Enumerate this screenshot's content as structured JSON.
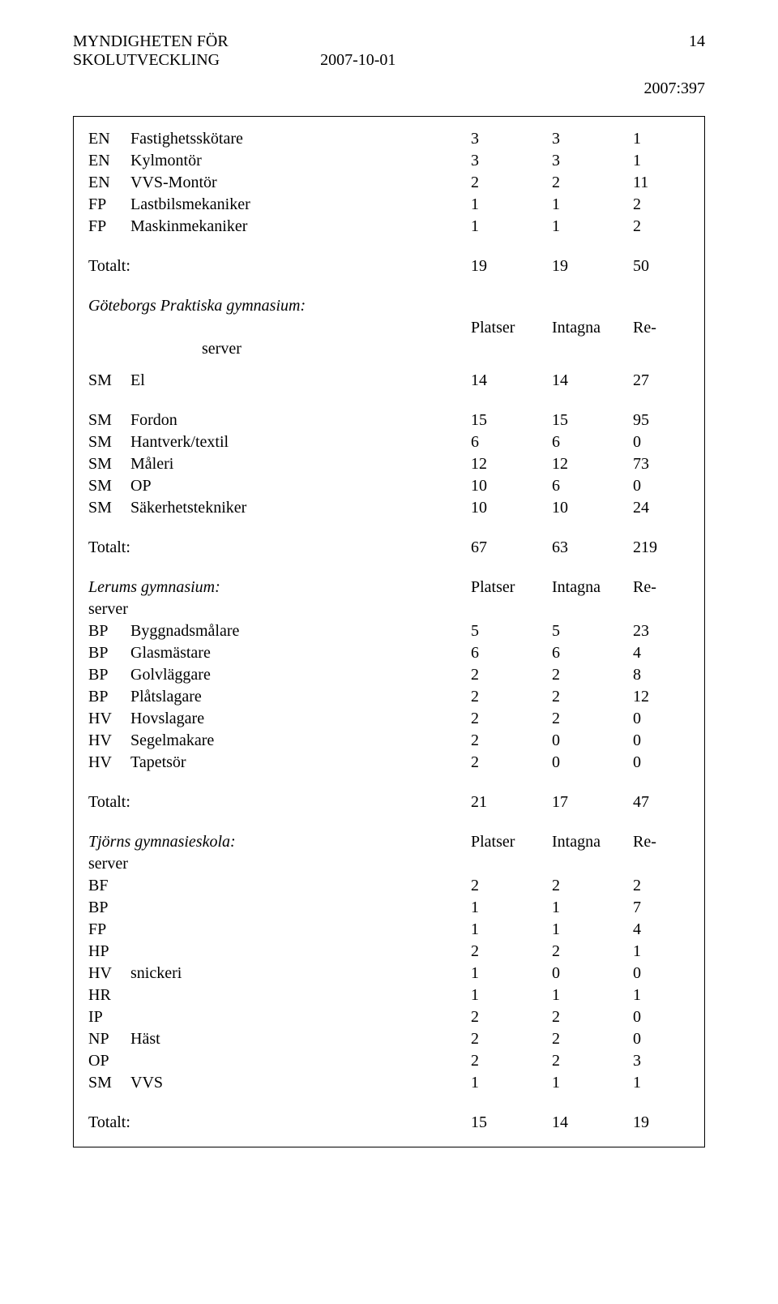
{
  "header": {
    "org_line1": "MYNDIGHETEN FÖR",
    "org_line2": "SKOLUTVECKLING",
    "date": "2007-10-01",
    "page_no": "14",
    "ref": "2007:397"
  },
  "col_headers": {
    "c1": "Platser",
    "c2": "Intagna",
    "c3a": "Re-",
    "c3b": "server"
  },
  "block1": {
    "rows": [
      {
        "code": "EN",
        "label": "Fastighetsskötare",
        "v1": "3",
        "v2": "3",
        "v3": "1"
      },
      {
        "code": "EN",
        "label": "Kylmontör",
        "v1": "3",
        "v2": "3",
        "v3": "1"
      },
      {
        "code": "EN",
        "label": "VVS-Montör",
        "v1": "2",
        "v2": "2",
        "v3": "11"
      },
      {
        "code": "FP",
        "label": "Lastbilsmekaniker",
        "v1": "1",
        "v2": "1",
        "v3": "2"
      },
      {
        "code": "FP",
        "label": "Maskinmekaniker",
        "v1": "1",
        "v2": "1",
        "v3": "2"
      }
    ],
    "total": {
      "label": "Totalt:",
      "v1": "19",
      "v2": "19",
      "v3": "50"
    }
  },
  "block2": {
    "title": "Göteborgs Praktiska gymnasium:",
    "lead": {
      "code": "SM",
      "label": "El",
      "v1": "14",
      "v2": "14",
      "v3": "27"
    },
    "rows": [
      {
        "code": "SM",
        "label": "Fordon",
        "v1": "15",
        "v2": "15",
        "v3": "95"
      },
      {
        "code": "SM",
        "label": "Hantverk/textil",
        "v1": "6",
        "v2": "6",
        "v3": "0"
      },
      {
        "code": "SM",
        "label": "Måleri",
        "v1": "12",
        "v2": "12",
        "v3": "73"
      },
      {
        "code": "SM",
        "label": "OP",
        "v1": "10",
        "v2": "6",
        "v3": "0"
      },
      {
        "code": "SM",
        "label": "Säkerhetstekniker",
        "v1": "10",
        "v2": "10",
        "v3": "24"
      }
    ],
    "total": {
      "label": "Totalt:",
      "v1": "67",
      "v2": "63",
      "v3": "219"
    }
  },
  "block3": {
    "title": "Lerums gymnasium:",
    "rows": [
      {
        "code": "BP",
        "label": "Byggnadsmålare",
        "v1": "5",
        "v2": "5",
        "v3": "23"
      },
      {
        "code": "BP",
        "label": "Glasmästare",
        "v1": "6",
        "v2": "6",
        "v3": "4"
      },
      {
        "code": "BP",
        "label": "Golvläggare",
        "v1": "2",
        "v2": "2",
        "v3": "8"
      },
      {
        "code": "BP",
        "label": "Plåtslagare",
        "v1": "2",
        "v2": "2",
        "v3": "12"
      },
      {
        "code": "HV",
        "label": "Hovslagare",
        "v1": "2",
        "v2": "2",
        "v3": "0"
      },
      {
        "code": "HV",
        "label": "Segelmakare",
        "v1": "2",
        "v2": "0",
        "v3": "0"
      },
      {
        "code": "HV",
        "label": "Tapetsör",
        "v1": "2",
        "v2": "0",
        "v3": "0"
      }
    ],
    "total": {
      "label": "Totalt:",
      "v1": "21",
      "v2": "17",
      "v3": "47"
    }
  },
  "block4": {
    "title": "Tjörns gymnasieskola:",
    "rows": [
      {
        "code": "BF",
        "label": "",
        "v1": "2",
        "v2": "2",
        "v3": "2"
      },
      {
        "code": "BP",
        "label": "",
        "v1": "1",
        "v2": "1",
        "v3": "7"
      },
      {
        "code": "FP",
        "label": "",
        "v1": "1",
        "v2": "1",
        "v3": "4"
      },
      {
        "code": "HP",
        "label": "",
        "v1": "2",
        "v2": "2",
        "v3": "1"
      },
      {
        "code": "HV",
        "label": "snickeri",
        "v1": "1",
        "v2": "0",
        "v3": "0"
      },
      {
        "code": "HR",
        "label": "",
        "v1": "1",
        "v2": "1",
        "v3": "1"
      },
      {
        "code": "IP",
        "label": "",
        "v1": "2",
        "v2": "2",
        "v3": "0"
      },
      {
        "code": "NP",
        "label": "Häst",
        "v1": "2",
        "v2": "2",
        "v3": "0"
      },
      {
        "code": "OP",
        "label": "",
        "v1": "2",
        "v2": "2",
        "v3": "3"
      },
      {
        "code": "SM",
        "label": "VVS",
        "v1": "1",
        "v2": "1",
        "v3": "1"
      }
    ],
    "total": {
      "label": "Totalt:",
      "v1": "15",
      "v2": "14",
      "v3": "19"
    }
  }
}
